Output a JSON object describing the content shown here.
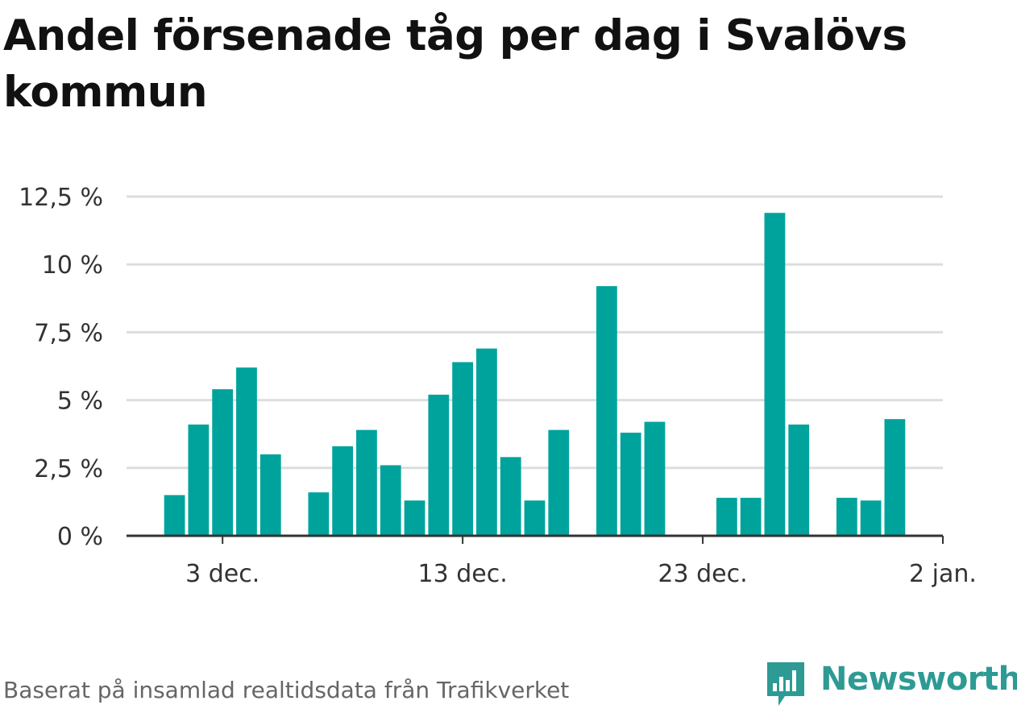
{
  "title": "Andel försenade tåg per dag i Svalövs kommun",
  "source": "Baserat på insamlad realtidsdata från Trafikverket",
  "logo": {
    "text": "Newsworthy",
    "icon": "bar-chart-speech-bubble-icon"
  },
  "colors": {
    "bar": "#00a39b",
    "grid": "#dddddd",
    "axis": "#333333",
    "brand": "#2e9a94"
  },
  "chart_data": {
    "type": "bar",
    "title": "Andel försenade tåg per dag i Svalövs kommun",
    "xlabel": "",
    "ylabel": "",
    "ylim": [
      0,
      12.5
    ],
    "yticks": [
      0,
      2.5,
      5,
      7.5,
      10,
      12.5
    ],
    "ytick_labels": [
      "0 %",
      "2,5 %",
      "5 %",
      "7,5 %",
      "10 %",
      "12,5 %"
    ],
    "xlim": [
      "2021-11-29",
      "2022-01-02"
    ],
    "xticks": [
      "2021-12-03",
      "2021-12-13",
      "2021-12-23",
      "2022-01-02"
    ],
    "xtick_labels": [
      "3 dec.",
      "13 dec.",
      "23 dec.",
      "2 jan."
    ],
    "grid": true,
    "series": [
      {
        "x": [
          "2021-12-01",
          "2021-12-02",
          "2021-12-03",
          "2021-12-04",
          "2021-12-05",
          "2021-12-07",
          "2021-12-08",
          "2021-12-09",
          "2021-12-10",
          "2021-12-11",
          "2021-12-12",
          "2021-12-13",
          "2021-12-14",
          "2021-12-15",
          "2021-12-16",
          "2021-12-17",
          "2021-12-19",
          "2021-12-20",
          "2021-12-21",
          "2021-12-24",
          "2021-12-25",
          "2021-12-26",
          "2021-12-27",
          "2021-12-29",
          "2021-12-30",
          "2021-12-31"
        ],
        "values": [
          1.5,
          4.1,
          5.4,
          6.2,
          3.0,
          1.6,
          3.3,
          3.9,
          2.6,
          1.3,
          5.2,
          6.4,
          6.9,
          2.9,
          1.3,
          3.9,
          9.2,
          3.8,
          4.2,
          1.4,
          1.4,
          11.9,
          4.1,
          1.4,
          1.3,
          4.3
        ]
      }
    ]
  }
}
